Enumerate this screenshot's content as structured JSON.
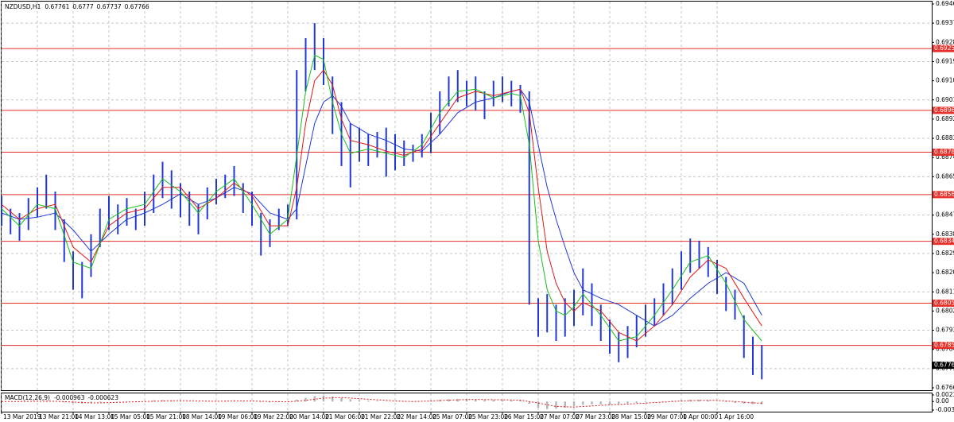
{
  "chart_data": [
    {
      "type": "ohlc",
      "title": "NZDUSD,H1",
      "header_values": [
        0.67761,
        0.6777,
        0.67737,
        0.67766
      ],
      "color": "#2038d8",
      "x": [
        0,
        4,
        8,
        12,
        16,
        20,
        24,
        28,
        32,
        36,
        40,
        44,
        48,
        52,
        56,
        60,
        64,
        68,
        72,
        76,
        80,
        84,
        88,
        92,
        96,
        100,
        104,
        108,
        112,
        116,
        120,
        124,
        128,
        132,
        136,
        140,
        144,
        148,
        152,
        156,
        160,
        164,
        168,
        172,
        176,
        180,
        184,
        188,
        192,
        196,
        200,
        204,
        208,
        212,
        216,
        220,
        224,
        228,
        232,
        236,
        240,
        244,
        248,
        252,
        256,
        260,
        264,
        268,
        272,
        276,
        280,
        284,
        288,
        292,
        296,
        300,
        304,
        308,
        312,
        316,
        320,
        324,
        328,
        332,
        336,
        340
      ],
      "high": [
        0.6856,
        0.685,
        0.6848,
        0.6855,
        0.686,
        0.6866,
        0.6858,
        0.6845,
        0.683,
        0.6825,
        0.6838,
        0.685,
        0.6856,
        0.6852,
        0.6855,
        0.685,
        0.6858,
        0.6866,
        0.6872,
        0.6868,
        0.6862,
        0.6858,
        0.6852,
        0.686,
        0.6864,
        0.6866,
        0.687,
        0.6862,
        0.6858,
        0.6848,
        0.6845,
        0.685,
        0.6852,
        0.6915,
        0.693,
        0.6937,
        0.693,
        0.6912,
        0.69,
        0.689,
        0.6888,
        0.6885,
        0.6886,
        0.6888,
        0.6885,
        0.6882,
        0.688,
        0.6885,
        0.6895,
        0.6905,
        0.6912,
        0.6915,
        0.691,
        0.6912,
        0.6905,
        0.691,
        0.6912,
        0.691,
        0.6908,
        0.6905,
        0.6808,
        0.681,
        0.6805,
        0.6808,
        0.6812,
        0.6822,
        0.6815,
        0.6805,
        0.6798,
        0.6792,
        0.6795,
        0.68,
        0.6805,
        0.6808,
        0.6815,
        0.6822,
        0.683,
        0.6836,
        0.6835,
        0.6832,
        0.6826,
        0.6818,
        0.6812,
        0.68,
        0.679,
        0.6786
      ],
      "low": [
        0.6842,
        0.6838,
        0.6835,
        0.684,
        0.6846,
        0.685,
        0.684,
        0.6825,
        0.6812,
        0.6808,
        0.6818,
        0.6832,
        0.684,
        0.6838,
        0.6842,
        0.684,
        0.6842,
        0.6848,
        0.6855,
        0.685,
        0.6846,
        0.6842,
        0.6838,
        0.6845,
        0.6852,
        0.6855,
        0.6856,
        0.6848,
        0.6842,
        0.6828,
        0.6832,
        0.684,
        0.6842,
        0.6845,
        0.6905,
        0.6915,
        0.6908,
        0.6885,
        0.687,
        0.686,
        0.6872,
        0.687,
        0.6874,
        0.6865,
        0.6868,
        0.687,
        0.6872,
        0.6874,
        0.6876,
        0.6885,
        0.6898,
        0.69,
        0.6898,
        0.6896,
        0.6892,
        0.6898,
        0.69,
        0.6898,
        0.6895,
        0.6805,
        0.679,
        0.6792,
        0.6788,
        0.679,
        0.6795,
        0.68,
        0.6795,
        0.6788,
        0.6782,
        0.6778,
        0.678,
        0.6785,
        0.679,
        0.6795,
        0.68,
        0.6805,
        0.6812,
        0.682,
        0.6822,
        0.6818,
        0.681,
        0.6802,
        0.6798,
        0.678,
        0.6772,
        0.677
      ],
      "series": [
        {
          "color": "#2038d8",
          "x": [
            0,
            8,
            16,
            24,
            32,
            40,
            48,
            56,
            64,
            72,
            80,
            88,
            96,
            104,
            112,
            120,
            128,
            132,
            136,
            140,
            144,
            148,
            152,
            156,
            164,
            172,
            180,
            188,
            196,
            204,
            212,
            220,
            228,
            232,
            236,
            240,
            244,
            248,
            252,
            256,
            260,
            268,
            276,
            284,
            292,
            300,
            308,
            316,
            324,
            332,
            340
          ],
          "values": [
            0.6848,
            0.6845,
            0.6846,
            0.6848,
            0.684,
            0.683,
            0.6838,
            0.6845,
            0.6848,
            0.6852,
            0.6857,
            0.6852,
            0.6855,
            0.686,
            0.6857,
            0.6848,
            0.6845,
            0.685,
            0.687,
            0.689,
            0.69,
            0.6903,
            0.6898,
            0.689,
            0.6885,
            0.6882,
            0.6878,
            0.6877,
            0.6885,
            0.6895,
            0.69,
            0.6902,
            0.6905,
            0.6906,
            0.69,
            0.688,
            0.686,
            0.6845,
            0.6832,
            0.682,
            0.6812,
            0.6808,
            0.6805,
            0.68,
            0.6795,
            0.68,
            0.6808,
            0.6815,
            0.682,
            0.6815,
            0.68
          ]
        },
        {
          "color": "#e01818",
          "x": [
            0,
            8,
            16,
            24,
            32,
            40,
            48,
            56,
            64,
            72,
            80,
            88,
            96,
            104,
            112,
            120,
            128,
            132,
            136,
            140,
            144,
            148,
            152,
            156,
            164,
            172,
            180,
            188,
            196,
            204,
            212,
            220,
            228,
            232,
            236,
            240,
            244,
            248,
            252,
            256,
            260,
            268,
            276,
            284,
            292,
            300,
            308,
            316,
            324,
            332,
            340
          ],
          "values": [
            0.6852,
            0.6845,
            0.685,
            0.6852,
            0.6832,
            0.6825,
            0.6842,
            0.6848,
            0.685,
            0.686,
            0.686,
            0.685,
            0.6855,
            0.6862,
            0.6856,
            0.6842,
            0.6842,
            0.686,
            0.689,
            0.691,
            0.6915,
            0.6908,
            0.6892,
            0.6882,
            0.688,
            0.6877,
            0.6875,
            0.6878,
            0.689,
            0.6902,
            0.6905,
            0.6903,
            0.6905,
            0.6906,
            0.6895,
            0.686,
            0.683,
            0.6815,
            0.6806,
            0.6802,
            0.6806,
            0.6802,
            0.6792,
            0.6788,
            0.6795,
            0.6805,
            0.6818,
            0.6826,
            0.6822,
            0.6808,
            0.6795
          ]
        },
        {
          "color": "#18c018",
          "x": [
            0,
            8,
            16,
            24,
            32,
            40,
            48,
            56,
            64,
            72,
            80,
            88,
            96,
            104,
            112,
            120,
            128,
            132,
            136,
            140,
            144,
            148,
            152,
            156,
            164,
            172,
            180,
            188,
            196,
            204,
            212,
            220,
            228,
            232,
            236,
            240,
            244,
            248,
            252,
            256,
            260,
            268,
            276,
            284,
            292,
            300,
            308,
            316,
            324,
            332,
            340
          ],
          "values": [
            0.685,
            0.6842,
            0.6852,
            0.685,
            0.6825,
            0.6822,
            0.6845,
            0.685,
            0.6852,
            0.6864,
            0.6858,
            0.6848,
            0.6858,
            0.6864,
            0.6852,
            0.6838,
            0.6845,
            0.6875,
            0.6905,
            0.6922,
            0.692,
            0.69,
            0.6885,
            0.6876,
            0.6878,
            0.6876,
            0.6874,
            0.688,
            0.6895,
            0.6905,
            0.6906,
            0.6902,
            0.6904,
            0.6903,
            0.688,
            0.6835,
            0.6812,
            0.6802,
            0.68,
            0.6804,
            0.681,
            0.68,
            0.6788,
            0.679,
            0.68,
            0.6812,
            0.6825,
            0.6828,
            0.6815,
            0.6798,
            0.6788
          ]
        }
      ],
      "levels": [
        0.69251,
        0.68961,
        0.68765,
        0.68566,
        0.68347,
        0.68057,
        0.67859
      ],
      "level_color": "#e8302a",
      "last_price": 0.67766,
      "ylim": [
        0.6766,
        0.6946
      ],
      "yticks": [
        {
          "value": 0.6946,
          "label": "0.69460"
        },
        {
          "value": 0.6937,
          "label": "0.69370"
        },
        {
          "value": 0.6928,
          "label": "0.69280"
        },
        {
          "value": 0.6919,
          "label": "0.69190"
        },
        {
          "value": 0.691,
          "label": "0.69100"
        },
        {
          "value": 0.6901,
          "label": "0.69010"
        },
        {
          "value": 0.6892,
          "label": "0.68920"
        },
        {
          "value": 0.6883,
          "label": "0.68830"
        },
        {
          "value": 0.6874,
          "label": "0.68740"
        },
        {
          "value": 0.6865,
          "label": "0.68650"
        },
        {
          "value": 0.6856,
          "label": "0.68560"
        },
        {
          "value": 0.6847,
          "label": "0.68470"
        },
        {
          "value": 0.6838,
          "label": "0.68380"
        },
        {
          "value": 0.6829,
          "label": "0.68290"
        },
        {
          "value": 0.682,
          "label": "0.68200"
        },
        {
          "value": 0.6811,
          "label": "0.68110"
        },
        {
          "value": 0.6802,
          "label": "0.68020"
        },
        {
          "value": 0.6793,
          "label": "0.67930"
        },
        {
          "value": 0.6784,
          "label": "0.67840"
        },
        {
          "value": 0.6775,
          "label": "0.67750"
        },
        {
          "value": 0.6766,
          "label": "0.67660"
        }
      ],
      "xlim": [
        0,
        416
      ],
      "xticks": [
        {
          "value": 0,
          "label": "13 Mar 2019"
        },
        {
          "value": 16,
          "label": "13 Mar 21:00"
        },
        {
          "value": 32,
          "label": "14 Mar 13:00"
        },
        {
          "value": 48,
          "label": "15 Mar 05:00"
        },
        {
          "value": 64,
          "label": "15 Mar 21:00"
        },
        {
          "value": 80,
          "label": "18 Mar 14:00"
        },
        {
          "value": 96,
          "label": "19 Mar 06:00"
        },
        {
          "value": 112,
          "label": "19 Mar 22:00"
        },
        {
          "value": 128,
          "label": "20 Mar 14:00"
        },
        {
          "value": 144,
          "label": "21 Mar 06:00"
        },
        {
          "value": 160,
          "label": "21 Mar 22:00"
        },
        {
          "value": 176,
          "label": "22 Mar 14:00"
        },
        {
          "value": 192,
          "label": "25 Mar 07:00"
        },
        {
          "value": 208,
          "label": "25 Mar 23:00"
        },
        {
          "value": 224,
          "label": "26 Mar 15:00"
        },
        {
          "value": 240,
          "label": "27 Mar 07:00"
        },
        {
          "value": 256,
          "label": "27 Mar 23:00"
        },
        {
          "value": 272,
          "label": "28 Mar 15:00"
        },
        {
          "value": 288,
          "label": "29 Mar 07:00"
        },
        {
          "value": 304,
          "label": "1 Apr 00:00"
        },
        {
          "value": 320,
          "label": "1 Apr 16:00"
        }
      ],
      "grid": true
    },
    {
      "type": "macd",
      "title": "MACD(12,26,9)",
      "header_values": [
        -0.000963,
        -0.000623
      ],
      "color": "#b4b4b4",
      "x": [
        0,
        4,
        8,
        12,
        16,
        20,
        24,
        28,
        32,
        36,
        40,
        44,
        48,
        52,
        56,
        60,
        64,
        68,
        72,
        76,
        80,
        84,
        88,
        92,
        96,
        100,
        104,
        108,
        112,
        116,
        120,
        124,
        128,
        132,
        136,
        140,
        144,
        148,
        152,
        156,
        160,
        164,
        168,
        172,
        176,
        180,
        184,
        188,
        192,
        196,
        200,
        204,
        208,
        212,
        216,
        220,
        224,
        228,
        232,
        236,
        240,
        244,
        248,
        252,
        256,
        260,
        264,
        268,
        272,
        276,
        280,
        284,
        288,
        292,
        296,
        300,
        304,
        308,
        312,
        316,
        320,
        324,
        328,
        332,
        336,
        340
      ],
      "values": [
        0.0001,
        0.0,
        -0.0001,
        0.0001,
        0.0002,
        0.0003,
        0.0001,
        -0.0003,
        -0.0006,
        -0.0007,
        -0.0005,
        -0.0002,
        0.0,
        0.0001,
        0.0001,
        0.0,
        0.0002,
        0.0004,
        0.0005,
        0.0004,
        0.0002,
        0.0,
        -0.0001,
        0.0001,
        0.0002,
        0.0003,
        0.0004,
        0.0002,
        0.0,
        -0.0002,
        -0.0003,
        -0.0002,
        -0.0001,
        0.0006,
        0.0013,
        0.0019,
        0.0021,
        0.0018,
        0.0013,
        0.0008,
        0.0005,
        0.0003,
        0.0002,
        0.0001,
        0.0,
        -0.0001,
        -0.0001,
        0.0,
        0.0003,
        0.0006,
        0.0008,
        0.0009,
        0.0008,
        0.0007,
        0.0006,
        0.0006,
        0.0006,
        0.0005,
        0.0004,
        -0.0008,
        -0.0022,
        -0.0027,
        -0.0026,
        -0.0022,
        -0.0017,
        -0.0012,
        -0.001,
        -0.001,
        -0.001,
        -0.0009,
        -0.0007,
        -0.0005,
        -0.0003,
        -0.0001,
        0.0001,
        0.0003,
        0.0005,
        0.0006,
        0.0006,
        0.0004,
        0.0001,
        -0.0002,
        -0.0005,
        -0.0007,
        -0.0009,
        -0.000963
      ],
      "signal": {
        "color": "#e01818",
        "x": [
          0,
          8,
          16,
          24,
          32,
          40,
          48,
          56,
          64,
          72,
          80,
          88,
          96,
          104,
          112,
          120,
          128,
          136,
          144,
          152,
          160,
          168,
          176,
          184,
          192,
          200,
          208,
          216,
          224,
          232,
          240,
          248,
          256,
          264,
          272,
          280,
          288,
          296,
          304,
          312,
          320,
          328,
          336,
          340
        ],
        "values": [
          0.0,
          0.0,
          0.0001,
          0.0001,
          -0.0002,
          -0.0005,
          -0.0004,
          -0.0002,
          0.0,
          0.0002,
          0.0003,
          0.0002,
          0.0001,
          0.0002,
          0.0002,
          0.0,
          -0.0001,
          0.0004,
          0.0012,
          0.0014,
          0.001,
          0.0006,
          0.0002,
          0.0,
          0.0002,
          0.0005,
          0.0007,
          0.0007,
          0.0006,
          0.0005,
          -0.0005,
          -0.0018,
          -0.002,
          -0.0016,
          -0.0012,
          -0.0009,
          -0.0006,
          -0.0002,
          0.0002,
          0.0004,
          0.0004,
          0.0,
          -0.0005,
          -0.000623
        ]
      },
      "ylim": [
        -0.00307,
        0.00234
      ],
      "yticks": [
        0.00234,
        {
          "value": 0,
          "label": "0.00"
        },
        -0.00307
      ]
    }
  ]
}
